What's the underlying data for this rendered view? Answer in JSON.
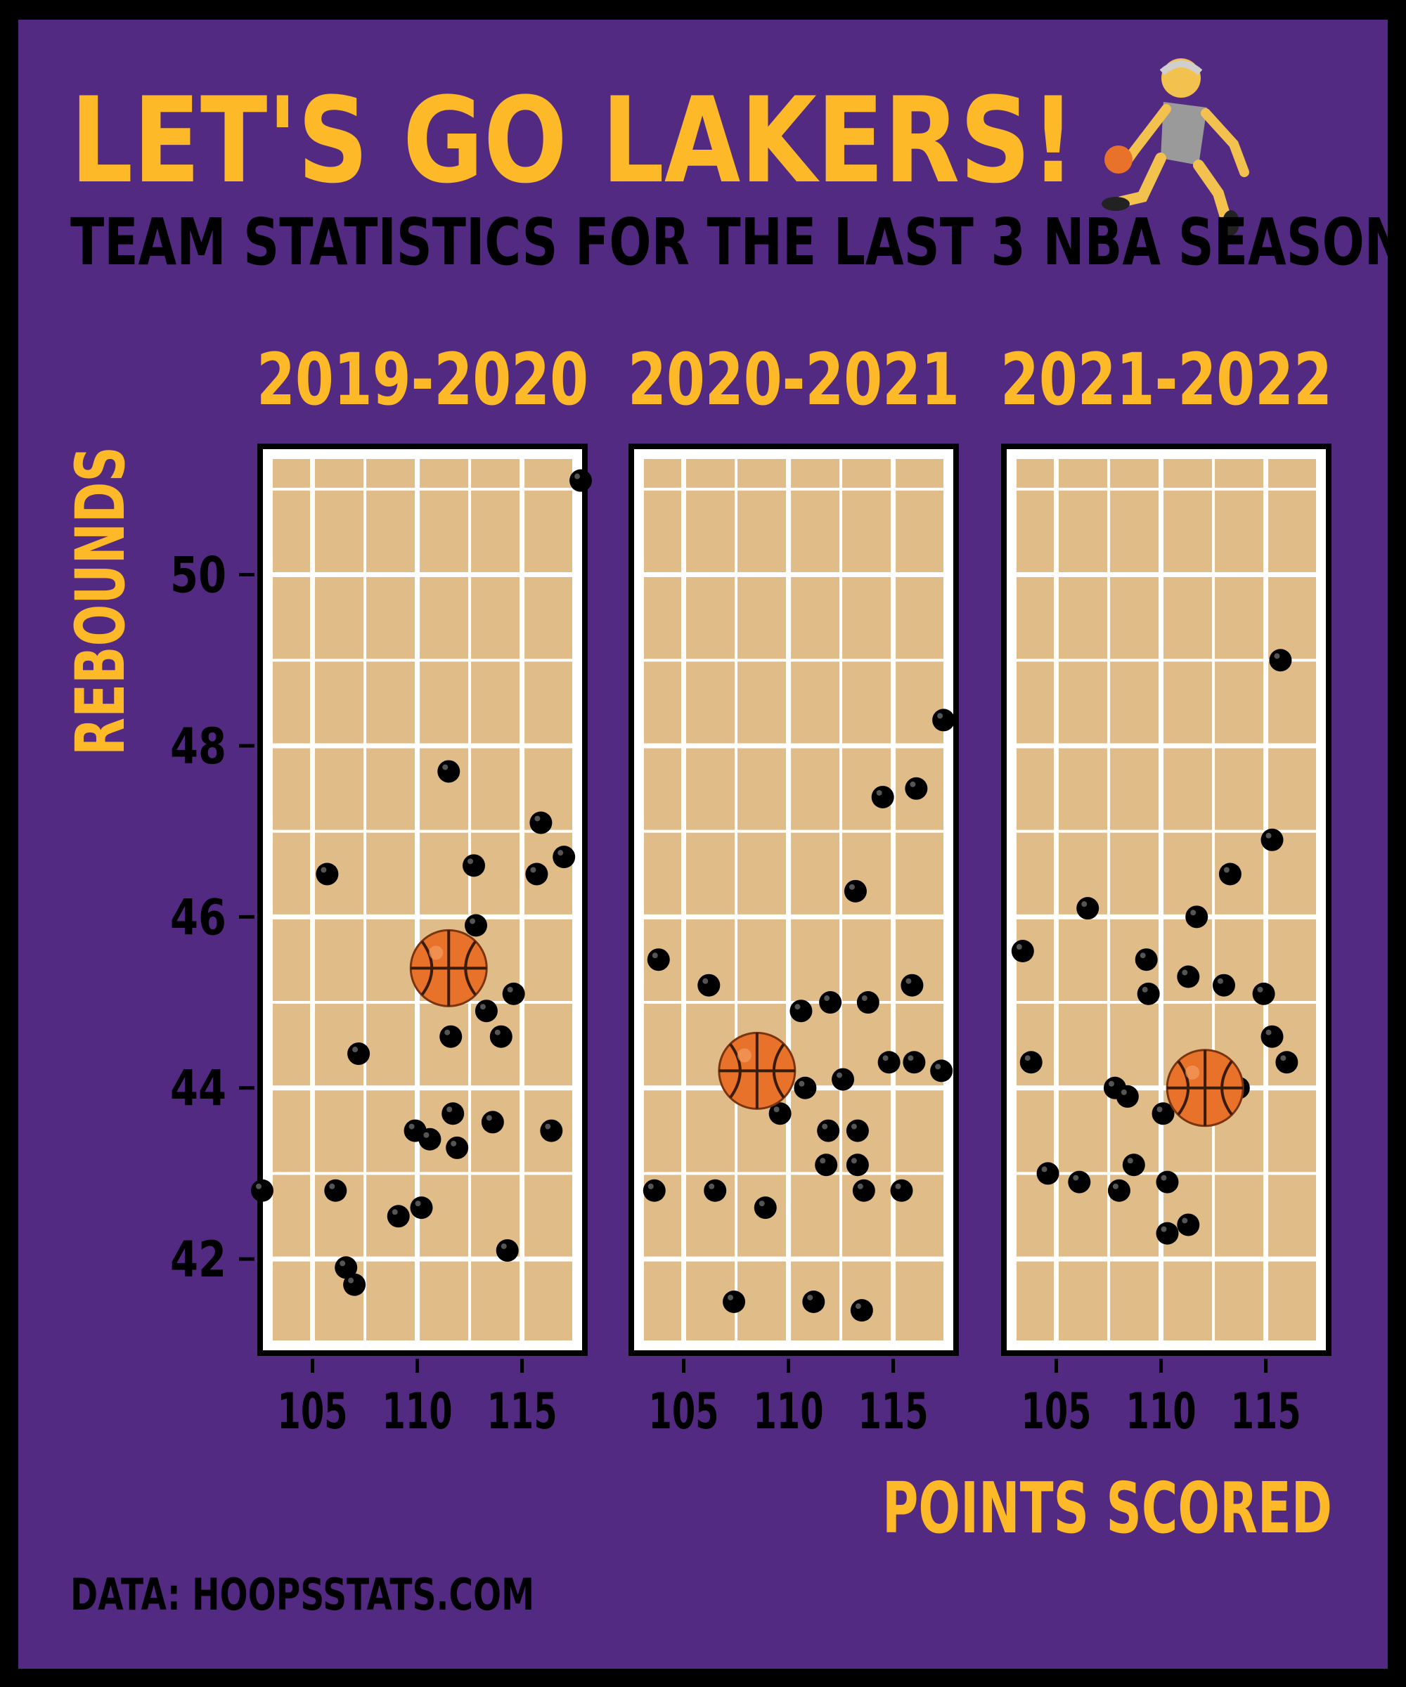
{
  "title": "LET'S GO LAKERS!",
  "subtitle": "TEAM STATISTICS FOR THE LAST 3 NBA SEASON",
  "caption": "DATA: HOOPSSTATS.COM",
  "colors": {
    "background": "#532A82",
    "accent": "#FDB927",
    "court": "#E0BD88",
    "grid": "#FFFFFF",
    "ink": "#000000",
    "ball": "#E8722A"
  },
  "icons": {
    "title": "basketball-player-icon",
    "centroid": "basketball-icon"
  },
  "chart_data": {
    "type": "scatter",
    "xlabel": "POINTS SCORED",
    "ylabel": "REBOUNDS",
    "xlim": [
      102.5,
      118
    ],
    "ylim": [
      40.9,
      51.5
    ],
    "xticks": [
      105,
      110,
      115
    ],
    "yticks": [
      42,
      44,
      46,
      48,
      50
    ],
    "panels": [
      {
        "label": "2019-2020",
        "centroid": [
          111.5,
          45.4
        ],
        "points": [
          [
            102.6,
            42.8
          ],
          [
            105.7,
            46.5
          ],
          [
            106.1,
            42.8
          ],
          [
            106.6,
            41.9
          ],
          [
            107.0,
            41.7
          ],
          [
            107.2,
            44.4
          ],
          [
            109.1,
            42.5
          ],
          [
            109.9,
            43.5
          ],
          [
            110.2,
            42.6
          ],
          [
            110.3,
            45.5
          ],
          [
            110.6,
            43.4
          ],
          [
            111.5,
            47.7
          ],
          [
            111.6,
            44.6
          ],
          [
            111.7,
            43.7
          ],
          [
            111.9,
            43.3
          ],
          [
            112.3,
            45.3
          ],
          [
            112.7,
            46.6
          ],
          [
            112.8,
            45.9
          ],
          [
            113.3,
            44.9
          ],
          [
            113.6,
            43.6
          ],
          [
            114.0,
            44.6
          ],
          [
            114.3,
            42.1
          ],
          [
            114.6,
            45.1
          ],
          [
            115.7,
            46.5
          ],
          [
            115.9,
            47.1
          ],
          [
            116.4,
            43.5
          ],
          [
            117.0,
            46.7
          ],
          [
            117.8,
            51.1
          ]
        ]
      },
      {
        "label": "2020-2021",
        "centroid": [
          108.5,
          44.2
        ],
        "points": [
          [
            103.6,
            42.8
          ],
          [
            103.8,
            45.5
          ],
          [
            106.2,
            45.2
          ],
          [
            106.5,
            42.8
          ],
          [
            107.4,
            41.5
          ],
          [
            108.9,
            42.6
          ],
          [
            109.6,
            43.7
          ],
          [
            110.6,
            44.9
          ],
          [
            110.8,
            44.0
          ],
          [
            111.2,
            41.5
          ],
          [
            111.8,
            43.1
          ],
          [
            111.9,
            43.5
          ],
          [
            112.0,
            45.0
          ],
          [
            112.6,
            44.1
          ],
          [
            113.2,
            46.3
          ],
          [
            113.3,
            43.1
          ],
          [
            113.3,
            43.5
          ],
          [
            113.5,
            41.4
          ],
          [
            113.6,
            42.8
          ],
          [
            113.8,
            45.0
          ],
          [
            114.5,
            47.4
          ],
          [
            114.8,
            44.3
          ],
          [
            115.4,
            42.8
          ],
          [
            115.9,
            45.2
          ],
          [
            116.0,
            44.3
          ],
          [
            116.1,
            47.5
          ],
          [
            117.3,
            44.2
          ],
          [
            117.4,
            48.3
          ]
        ]
      },
      {
        "label": "2021-2022",
        "centroid": [
          112.1,
          44.0
        ],
        "points": [
          [
            103.4,
            45.6
          ],
          [
            103.8,
            44.3
          ],
          [
            104.6,
            43.0
          ],
          [
            106.1,
            42.9
          ],
          [
            106.5,
            46.1
          ],
          [
            107.8,
            44.0
          ],
          [
            108.0,
            42.8
          ],
          [
            108.4,
            43.9
          ],
          [
            108.7,
            43.1
          ],
          [
            109.3,
            45.5
          ],
          [
            109.4,
            45.1
          ],
          [
            110.1,
            43.7
          ],
          [
            110.3,
            42.9
          ],
          [
            110.3,
            42.3
          ],
          [
            111.3,
            42.4
          ],
          [
            111.3,
            45.3
          ],
          [
            111.7,
            46.0
          ],
          [
            113.0,
            45.2
          ],
          [
            113.3,
            46.5
          ],
          [
            113.7,
            44.0
          ],
          [
            114.9,
            45.1
          ],
          [
            115.3,
            44.6
          ],
          [
            115.3,
            46.9
          ],
          [
            115.7,
            49.0
          ],
          [
            116.0,
            44.3
          ]
        ]
      }
    ]
  }
}
